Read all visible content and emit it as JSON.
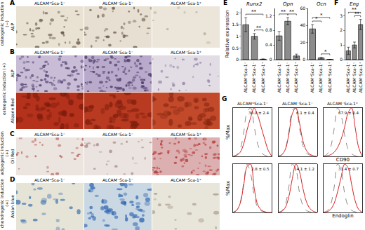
{
  "figure": {
    "groups": [
      "ALCAM⁺Sca-1⁻",
      "ALCAM⁻Sca-1⁻",
      "ALCAM⁻Sca-1⁺"
    ],
    "image_panels": [
      {
        "letter": "A",
        "condition": "osteogenic induction (−)",
        "rows": [
          "ALP"
        ]
      },
      {
        "letter": "B",
        "condition": "osteogenic induction (+)",
        "rows": [
          "ALP",
          "Alizarin Red"
        ]
      },
      {
        "letter": "C",
        "condition": "adipogenic induction (+)",
        "rows": [
          "Oil Red"
        ]
      },
      {
        "letter": "D",
        "condition": "chondrogenic induction (+)",
        "rows": [
          "Alcian blue"
        ]
      }
    ]
  },
  "chart_data": [
    {
      "panel": "E",
      "type": "bar",
      "title": "Runx2",
      "ylabel": "Relative expression",
      "categories": [
        "ALCAM⁺Sca-1⁻",
        "ALCAM⁻Sca-1⁻",
        "ALCAM⁻Sca-1⁺"
      ],
      "values": [
        1.5,
        1.0,
        0.02
      ],
      "errors": [
        0.3,
        0.12,
        0.01
      ],
      "color": "#8c8c8c",
      "ylim": [
        0,
        2.2
      ],
      "yticks": [
        0,
        0.5,
        1,
        1.5,
        2
      ],
      "grid": false,
      "significance": [
        {
          "pair": [
            1,
            2
          ],
          "label": "**"
        },
        {
          "pair": [
            0,
            2
          ],
          "label": "**"
        }
      ]
    },
    {
      "panel": "E",
      "type": "bar",
      "title": "Opn",
      "categories": [
        "ALCAM⁺Sca-1⁻",
        "ALCAM⁻Sca-1⁻",
        "ALCAM⁻Sca-1⁺"
      ],
      "values": [
        0.65,
        1.05,
        0.1
      ],
      "errors": [
        0.12,
        0.1,
        0.05
      ],
      "color": "#8c8c8c",
      "ylim": [
        0,
        1.4
      ],
      "yticks": [
        0,
        0.4,
        0.8,
        1.2
      ],
      "grid": false,
      "significance": [
        {
          "pair": [
            0,
            1
          ],
          "label": "**"
        },
        {
          "pair": [
            1,
            2
          ],
          "label": "**"
        }
      ]
    },
    {
      "panel": "E",
      "type": "bar",
      "title": "Ocn",
      "categories": [
        "ALCAM⁺Sca-1⁻",
        "ALCAM⁻Sca-1⁻",
        "ALCAM⁻Sca-1⁺"
      ],
      "values": [
        36,
        2,
        0.3
      ],
      "errors": [
        5,
        0.5,
        0.1
      ],
      "color": "#8c8c8c",
      "ylim": [
        0,
        60
      ],
      "yticks": [
        0,
        20,
        40,
        60
      ],
      "grid": false,
      "significance": [
        {
          "pair": [
            1,
            2
          ],
          "label": "*"
        },
        {
          "pair": [
            0,
            1
          ],
          "label": "*"
        },
        {
          "pair": [
            0,
            2
          ],
          "label": "*"
        }
      ]
    },
    {
      "panel": "F",
      "type": "bar",
      "title": "Eng",
      "categories": [
        "ALCAM⁺Sca-1⁻",
        "ALCAM⁻Sca-1⁻",
        "ALCAM⁻Sca-1⁺"
      ],
      "values": [
        0.6,
        1.0,
        2.4
      ],
      "errors": [
        0.25,
        0.2,
        0.35
      ],
      "color": "#8c8c8c",
      "ylim": [
        0,
        3.5
      ],
      "yticks": [
        0,
        1,
        2,
        3
      ],
      "grid": false,
      "significance": [
        {
          "pair": [
            1,
            2
          ],
          "label": "**"
        },
        {
          "pair": [
            0,
            2
          ],
          "label": "**"
        }
      ]
    },
    {
      "panel": "G",
      "type": "line",
      "title": "ALCAM⁺Sca-1⁻",
      "ylabel": "%Max",
      "annotation": "30.0 ± 2.4",
      "x": [
        0,
        1,
        2,
        3,
        4,
        5,
        6,
        7,
        8,
        9,
        10,
        11
      ],
      "xlim": [
        0,
        11
      ],
      "ylim": [
        0,
        100
      ],
      "tick_labels": false,
      "series": [
        {
          "color": "#8a8a8a",
          "line_style": "dashed",
          "values": [
            0,
            3,
            14,
            48,
            92,
            100,
            62,
            25,
            8,
            2,
            0,
            0
          ]
        },
        {
          "color": "#d62020",
          "line_style": "solid",
          "values": [
            0,
            2,
            8,
            25,
            55,
            80,
            100,
            85,
            60,
            35,
            12,
            0
          ]
        }
      ]
    },
    {
      "panel": "G",
      "type": "line",
      "title": "ALCAM⁻Sca-1⁻",
      "annotation": "6.1 ± 0.4",
      "x": [
        0,
        1,
        2,
        3,
        4,
        5,
        6,
        7,
        8,
        9,
        10,
        11
      ],
      "xlim": [
        0,
        11
      ],
      "ylim": [
        0,
        100
      ],
      "tick_labels": false,
      "series": [
        {
          "color": "#8a8a8a",
          "line_style": "dashed",
          "values": [
            0,
            3,
            15,
            50,
            95,
            100,
            60,
            22,
            7,
            2,
            0,
            0
          ]
        },
        {
          "color": "#d62020",
          "line_style": "solid",
          "values": [
            0,
            3,
            14,
            45,
            88,
            100,
            70,
            32,
            12,
            4,
            1,
            0
          ]
        }
      ]
    },
    {
      "panel": "G",
      "type": "line",
      "title": "ALCAM⁻Sca-1⁺",
      "xlabel": "CD90",
      "annotation": "67.9 ± 0.4",
      "x": [
        0,
        1,
        2,
        3,
        4,
        5,
        6,
        7,
        8,
        9,
        10,
        11
      ],
      "xlim": [
        0,
        11
      ],
      "ylim": [
        0,
        100
      ],
      "tick_labels": false,
      "series": [
        {
          "color": "#8a8a8a",
          "line_style": "dashed",
          "values": [
            0,
            4,
            18,
            55,
            100,
            85,
            45,
            15,
            5,
            1,
            0,
            0
          ]
        },
        {
          "color": "#d62020",
          "line_style": "solid",
          "values": [
            0,
            1,
            3,
            8,
            18,
            35,
            60,
            90,
            100,
            60,
            18,
            0
          ]
        }
      ]
    },
    {
      "panel": "G",
      "type": "line",
      "ylabel": "%Max",
      "annotation": "2.8 ± 0.5",
      "x": [
        0,
        1,
        2,
        3,
        4,
        5,
        6,
        7,
        8,
        9,
        10,
        11
      ],
      "xlim": [
        0,
        11
      ],
      "ylim": [
        0,
        100
      ],
      "tick_labels": false,
      "series": [
        {
          "color": "#8a8a8a",
          "line_style": "dashed",
          "values": [
            0,
            4,
            20,
            60,
            100,
            80,
            35,
            10,
            3,
            1,
            0,
            0
          ]
        },
        {
          "color": "#d62020",
          "line_style": "solid",
          "values": [
            0,
            4,
            18,
            55,
            95,
            100,
            50,
            16,
            5,
            1,
            0,
            0
          ]
        }
      ]
    },
    {
      "panel": "G",
      "type": "line",
      "annotation": "14.1 ± 1.2",
      "x": [
        0,
        1,
        2,
        3,
        4,
        5,
        6,
        7,
        8,
        9,
        10,
        11
      ],
      "xlim": [
        0,
        11
      ],
      "ylim": [
        0,
        100
      ],
      "tick_labels": false,
      "series": [
        {
          "color": "#8a8a8a",
          "line_style": "dashed",
          "values": [
            0,
            3,
            16,
            52,
            100,
            90,
            42,
            14,
            4,
            1,
            0,
            0
          ]
        },
        {
          "color": "#d62020",
          "line_style": "solid",
          "values": [
            0,
            2,
            10,
            32,
            70,
            100,
            85,
            50,
            22,
            8,
            2,
            0
          ]
        }
      ]
    },
    {
      "panel": "G",
      "type": "line",
      "xlabel": "Endoglin",
      "annotation": "31.4 ± 0.7",
      "x": [
        0,
        1,
        2,
        3,
        4,
        5,
        6,
        7,
        8,
        9,
        10,
        11
      ],
      "xlim": [
        0,
        11
      ],
      "ylim": [
        0,
        100
      ],
      "tick_labels": false,
      "series": [
        {
          "color": "#8a8a8a",
          "line_style": "dashed",
          "values": [
            0,
            3,
            15,
            50,
            100,
            88,
            40,
            13,
            4,
            1,
            0,
            0
          ]
        },
        {
          "color": "#d62020",
          "line_style": "solid",
          "values": [
            0,
            1,
            6,
            18,
            42,
            72,
            100,
            92,
            58,
            24,
            6,
            0
          ]
        }
      ]
    }
  ]
}
